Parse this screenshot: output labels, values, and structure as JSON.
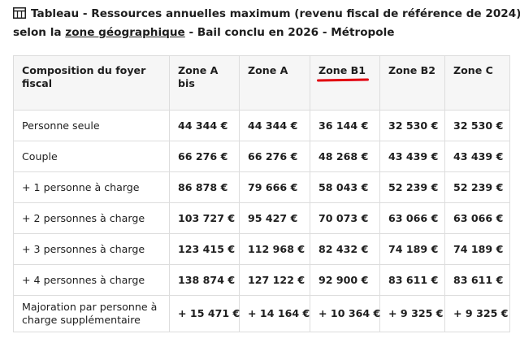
{
  "caption": {
    "line1": "Tableau - Ressources annuelles maximum (revenu fiscal de référence de 2024)",
    "line2_prefix": "selon la ",
    "line2_link": "zone géographique",
    "line2_suffix": " - Bail conclu en 2026 - Métropole",
    "icon": "table-icon"
  },
  "table": {
    "headers": [
      "Composition du foyer fiscal",
      "Zone A bis",
      "Zone A",
      "Zone B1",
      "Zone B2",
      "Zone C"
    ],
    "highlighted_header": "Zone B1",
    "highlight_color": "#e1000f",
    "rows": [
      {
        "label": "Personne seule",
        "values": [
          "44 344 €",
          "44 344 €",
          "36 144 €",
          "32 530 €",
          "32 530 €"
        ]
      },
      {
        "label": "Couple",
        "values": [
          "66 276 €",
          "66 276 €",
          "48 268 €",
          "43 439 €",
          "43 439 €"
        ]
      },
      {
        "label": "+ 1 personne à charge",
        "values": [
          "86 878 €",
          "79 666 €",
          "58 043 €",
          "52 239 €",
          "52 239 €"
        ]
      },
      {
        "label": "+ 2 personnes à charge",
        "values": [
          "103 727 €",
          "95 427 €",
          "70 073 €",
          "63 066 €",
          "63 066 €"
        ]
      },
      {
        "label": "+ 3 personnes à charge",
        "values": [
          "123 415 €",
          "112 968 €",
          "82 432 €",
          "74 189 €",
          "74 189 €"
        ]
      },
      {
        "label": "+ 4 personnes à charge",
        "values": [
          "138 874 €",
          "127 122 €",
          "92 900 €",
          "83 611 €",
          "83 611 €"
        ]
      },
      {
        "label": "Majoration par personne à charge supplémentaire",
        "values": [
          "+ 15 471 €",
          "+ 14 164 €",
          "+ 10 364 €",
          "+ 9 325 €",
          "+ 9 325 €"
        ]
      }
    ]
  }
}
